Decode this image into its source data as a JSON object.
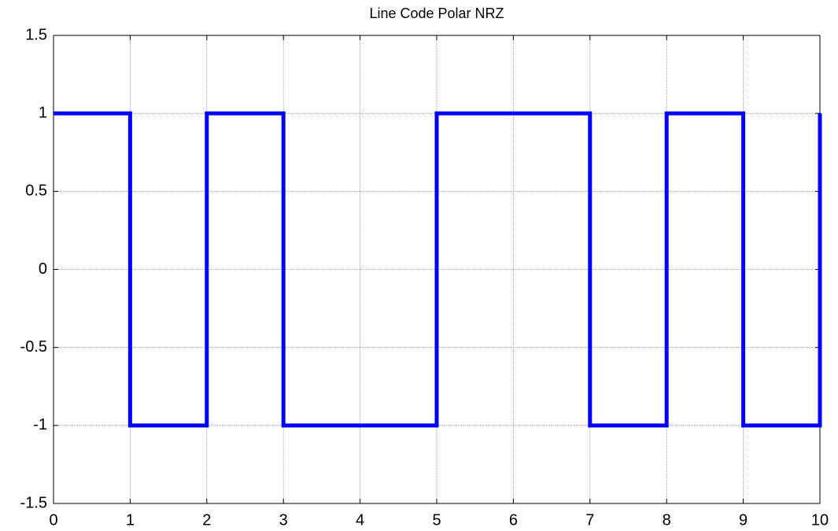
{
  "chart_data": {
    "type": "line",
    "title": "Line Code Polar NRZ",
    "x": [
      0,
      1,
      1,
      2,
      2,
      3,
      3,
      5,
      5,
      7,
      7,
      8,
      8,
      9,
      9,
      10,
      10
    ],
    "series": [
      {
        "color": "#0000ff",
        "values": [
          1,
          1,
          -1,
          -1,
          1,
          1,
          -1,
          -1,
          1,
          1,
          -1,
          -1,
          1,
          1,
          -1,
          -1,
          1
        ]
      }
    ],
    "xlim": [
      0,
      10
    ],
    "xticks": [
      0,
      1,
      2,
      3,
      4,
      5,
      6,
      7,
      8,
      9,
      10
    ],
    "ylim": [
      -1.5,
      1.5
    ],
    "yticks": [
      -1.5,
      -1,
      -0.5,
      0,
      0.5,
      1,
      1.5
    ],
    "grid": true
  }
}
